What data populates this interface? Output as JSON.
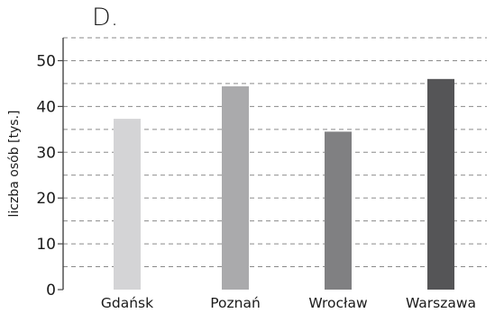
{
  "chart_data": {
    "type": "bar",
    "panel_label": "D.",
    "title": "",
    "xlabel": "",
    "ylabel": "liczba osób [tys.]",
    "categories": [
      "Gdańsk",
      "Poznań",
      "Wrocław",
      "Warszawa"
    ],
    "values": [
      37.3,
      44.4,
      34.5,
      46.0
    ],
    "colors": [
      "#d4d4d6",
      "#aaaaac",
      "#808082",
      "#555557"
    ],
    "ylim": [
      0,
      55
    ],
    "yticks": [
      0,
      10,
      20,
      30,
      40,
      50
    ],
    "grid": "dashed horizontal every 5",
    "legend": "none"
  }
}
